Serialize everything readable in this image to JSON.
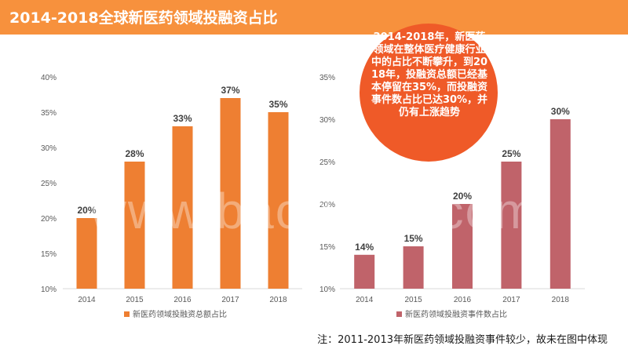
{
  "title": "2014-2018全球新医药领域投融资占比",
  "watermark": "www.baogao8.com",
  "callout": "2014-2018年，新医药领域在整体医疗健康行业中的占比不断攀升，到2018年，投融资总额已经基本停留在35%，而投融资事件数占比已达30%，并仍有上涨趋势",
  "footnote": "注：2011-2013年新医药领域投融资事件较少，故未在图中体现",
  "colors": {
    "title_bar": "#f7913d",
    "left_series": "#ee7f32",
    "right_series": "#c0636a",
    "callout": "#ef5a28"
  },
  "chart_data": [
    {
      "type": "bar",
      "categories": [
        "2014",
        "2015",
        "2016",
        "2017",
        "2018"
      ],
      "series": [
        {
          "name": "新医药领域投融资总额占比",
          "values": [
            20,
            28,
            33,
            37,
            35
          ]
        }
      ],
      "data_labels": [
        "20%",
        "28%",
        "33%",
        "37%",
        "35%"
      ],
      "ylim": [
        10,
        40
      ],
      "yticks": [
        "10%",
        "15%",
        "20%",
        "25%",
        "30%",
        "35%",
        "40%"
      ],
      "ytick_values": [
        10,
        15,
        20,
        25,
        30,
        35,
        40
      ],
      "legend": "bottom",
      "grid": false
    },
    {
      "type": "bar",
      "categories": [
        "2014",
        "2015",
        "2016",
        "2017",
        "2018"
      ],
      "series": [
        {
          "name": "新医药领域投融资事件数占比",
          "values": [
            14,
            15,
            20,
            25,
            30
          ]
        }
      ],
      "data_labels": [
        "14%",
        "15%",
        "20%",
        "25%",
        "30%"
      ],
      "ylim": [
        10,
        35
      ],
      "yticks": [
        "10%",
        "15%",
        "20%",
        "25%",
        "30%",
        "35%"
      ],
      "ytick_values": [
        10,
        15,
        20,
        25,
        30,
        35
      ],
      "legend": "bottom",
      "grid": false
    }
  ]
}
